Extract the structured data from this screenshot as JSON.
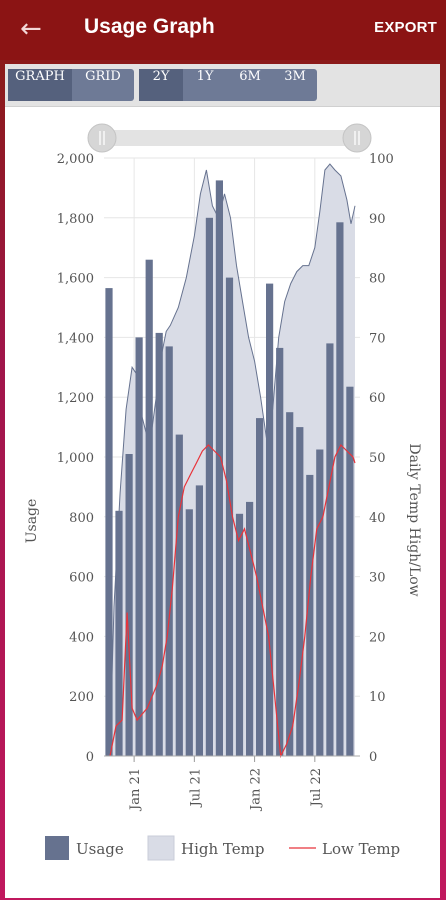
{
  "appbar": {
    "title": "Usage Graph",
    "export_label": "EXPORT",
    "back_icon": "arrow-left-icon"
  },
  "toolbar": {
    "view_modes": [
      {
        "label": "GRAPH",
        "active": true
      },
      {
        "label": "GRID",
        "active": false
      }
    ],
    "ranges": [
      {
        "label": "2Y",
        "active": true
      },
      {
        "label": "1Y",
        "active": false
      },
      {
        "label": "6M",
        "active": false
      },
      {
        "label": "3M",
        "active": false
      }
    ]
  },
  "range_slider": {
    "start": 0,
    "end": 1
  },
  "chart_data": {
    "type": "bar",
    "ylabel": "Usage",
    "y2label": "Daily Temp High/Low",
    "ylim": [
      0,
      2000
    ],
    "y2lim": [
      0,
      100
    ],
    "y_ticks": [
      "0",
      "200",
      "400",
      "600",
      "800",
      "1,000",
      "1,200",
      "1,400",
      "1,600",
      "1,800",
      "2,000"
    ],
    "y2_ticks": [
      "0",
      "10",
      "20",
      "30",
      "40",
      "50",
      "60",
      "70",
      "80",
      "90",
      "100"
    ],
    "x_ticks": [
      "Jan 21",
      "Jul 21",
      "Jan 22",
      "Jul 22"
    ],
    "x_tick_months": [
      3.0,
      9.0,
      15.0,
      21.0
    ],
    "x_range_months": [
      0,
      25.5
    ],
    "grid": true,
    "legend_position": "bottom",
    "colors": {
      "usage": "#66728f",
      "high_temp_fill": "#d9dce6",
      "high_temp_line": "#66728f",
      "low_temp": "#e8333a",
      "grid": "#e6e6e6"
    },
    "series": [
      {
        "name": "Usage",
        "kind": "bar",
        "months": [
          0.5,
          1.5,
          2.5,
          3.5,
          4.5,
          5.5,
          6.5,
          7.5,
          8.5,
          9.5,
          10.5,
          11.5,
          12.5,
          13.5,
          14.5,
          15.5,
          16.5,
          17.5,
          18.5,
          19.5,
          20.5,
          21.5,
          22.5,
          23.5,
          24.5
        ],
        "values": [
          1565,
          820,
          1010,
          1400,
          1660,
          1415,
          1370,
          1075,
          825,
          905,
          1800,
          1925,
          1600,
          810,
          850,
          1130,
          1580,
          1365,
          1150,
          1100,
          940,
          1025,
          1380,
          1785,
          1235
        ]
      },
      {
        "name": "High Temp",
        "kind": "area",
        "x": [
          0.6,
          1.0,
          1.6,
          2.2,
          2.8,
          3.2,
          3.6,
          4.2,
          4.8,
          5.2,
          5.6,
          6.2,
          6.6,
          7.4,
          8.2,
          9.0,
          9.6,
          10.2,
          10.8,
          11.4,
          12.0,
          12.6,
          13.2,
          13.8,
          14.4,
          15.0,
          15.6,
          16.2,
          16.8,
          17.4,
          18.0,
          18.6,
          19.2,
          19.8,
          20.4,
          21.0,
          21.5,
          22.0,
          22.5,
          23.0,
          23.6,
          24.2,
          24.6,
          25.0
        ],
        "values": [
          2,
          25,
          44,
          58,
          65,
          64,
          58,
          54,
          55,
          60,
          66,
          71,
          72,
          75,
          80,
          87,
          94,
          98,
          92,
          90,
          94,
          90,
          82,
          76,
          70,
          66,
          60,
          53,
          58,
          70,
          76,
          79,
          81,
          82,
          82,
          85,
          91,
          98,
          99,
          98,
          97,
          93,
          89,
          92
        ]
      },
      {
        "name": "Low Temp",
        "kind": "line",
        "x": [
          0.6,
          1.2,
          1.8,
          2.3,
          2.8,
          3.3,
          3.8,
          4.3,
          4.8,
          5.3,
          5.8,
          6.3,
          6.8,
          7.4,
          8.0,
          8.6,
          9.2,
          9.8,
          10.4,
          11.0,
          11.6,
          12.2,
          12.8,
          13.4,
          14.0,
          14.6,
          15.2,
          15.8,
          16.4,
          17.0,
          17.6,
          18.2,
          18.8,
          19.4,
          20.0,
          20.6,
          21.2,
          21.8,
          22.4,
          23.0,
          23.6,
          24.2,
          24.8,
          25.0
        ],
        "values": [
          0,
          5,
          6,
          24,
          8,
          6,
          7,
          8,
          10,
          12,
          15,
          20,
          28,
          40,
          45,
          47,
          49,
          51,
          52,
          51,
          50,
          46,
          40,
          36,
          38,
          34,
          30,
          25,
          20,
          10,
          0,
          2,
          5,
          12,
          20,
          30,
          38,
          40,
          45,
          50,
          52,
          51,
          50,
          49
        ]
      }
    ]
  },
  "legend": [
    {
      "label": "Usage"
    },
    {
      "label": "High Temp"
    },
    {
      "label": "Low Temp"
    }
  ]
}
